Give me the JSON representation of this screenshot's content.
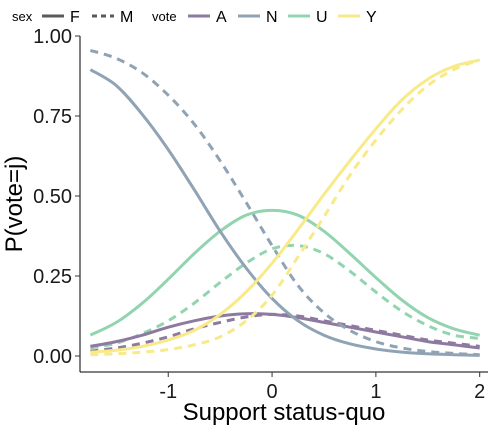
{
  "chart_data": {
    "type": "line",
    "xlabel": "Support status-quo",
    "ylabel": "P(vote=j)",
    "xlim": [
      -1.85,
      2.08
    ],
    "ylim": [
      -0.05,
      1.0
    ],
    "x_ticks": [
      -1,
      0,
      1,
      2
    ],
    "x_tick_labels": [
      "-1",
      "0",
      "1",
      "2"
    ],
    "y_ticks": [
      0.0,
      0.25,
      0.5,
      0.75,
      1.0
    ],
    "y_tick_labels": [
      "0.00",
      "0.25",
      "0.50",
      "0.75",
      "1.00"
    ],
    "grid": false,
    "legend_position": "top",
    "legend": {
      "sex_title": "sex",
      "sex_items": [
        {
          "label": "F",
          "linetype": "solid"
        },
        {
          "label": "M",
          "linetype": "dashed"
        }
      ],
      "vote_title": "vote",
      "vote_items": [
        {
          "label": "A",
          "color": "#8e79a0"
        },
        {
          "label": "N",
          "color": "#8fa3b4"
        },
        {
          "label": "U",
          "color": "#92d4b0"
        },
        {
          "label": "Y",
          "color": "#f8ea88"
        }
      ]
    },
    "x": [
      -1.75,
      -1.5,
      -1.25,
      -1.0,
      -0.75,
      -0.5,
      -0.25,
      0.0,
      0.25,
      0.5,
      0.75,
      1.0,
      1.25,
      1.5,
      1.75,
      2.0
    ],
    "series": [
      {
        "vote": "N",
        "sex": "F",
        "color": "#8fa3b4",
        "linetype": "solid",
        "values": [
          0.895,
          0.845,
          0.755,
          0.645,
          0.52,
          0.39,
          0.275,
          0.18,
          0.11,
          0.065,
          0.038,
          0.022,
          0.012,
          0.007,
          0.004,
          0.002
        ]
      },
      {
        "vote": "N",
        "sex": "M",
        "color": "#8fa3b4",
        "linetype": "dashed",
        "values": [
          0.955,
          0.93,
          0.885,
          0.815,
          0.725,
          0.61,
          0.48,
          0.345,
          0.22,
          0.135,
          0.08,
          0.045,
          0.025,
          0.014,
          0.008,
          0.004
        ]
      },
      {
        "vote": "U",
        "sex": "F",
        "color": "#92d4b0",
        "linetype": "solid",
        "values": [
          0.065,
          0.105,
          0.165,
          0.24,
          0.32,
          0.39,
          0.44,
          0.455,
          0.44,
          0.39,
          0.32,
          0.245,
          0.175,
          0.12,
          0.085,
          0.065
        ]
      },
      {
        "vote": "U",
        "sex": "M",
        "color": "#92d4b0",
        "linetype": "dashed",
        "values": [
          0.025,
          0.04,
          0.07,
          0.11,
          0.165,
          0.23,
          0.29,
          0.335,
          0.345,
          0.32,
          0.265,
          0.2,
          0.14,
          0.095,
          0.065,
          0.055
        ]
      },
      {
        "vote": "A",
        "sex": "F",
        "color": "#8e79a0",
        "linetype": "solid",
        "values": [
          0.03,
          0.045,
          0.065,
          0.09,
          0.11,
          0.125,
          0.132,
          0.13,
          0.12,
          0.105,
          0.09,
          0.075,
          0.06,
          0.045,
          0.035,
          0.025
        ]
      },
      {
        "vote": "A",
        "sex": "M",
        "color": "#8e79a0",
        "linetype": "dashed",
        "values": [
          0.015,
          0.025,
          0.04,
          0.06,
          0.085,
          0.105,
          0.122,
          0.13,
          0.125,
          0.11,
          0.095,
          0.08,
          0.065,
          0.05,
          0.04,
          0.03
        ]
      },
      {
        "vote": "Y",
        "sex": "F",
        "color": "#f8ea88",
        "linetype": "solid",
        "values": [
          0.012,
          0.018,
          0.03,
          0.05,
          0.08,
          0.13,
          0.2,
          0.29,
          0.395,
          0.505,
          0.61,
          0.71,
          0.8,
          0.865,
          0.905,
          0.925
        ]
      },
      {
        "vote": "Y",
        "sex": "M",
        "color": "#f8ea88",
        "linetype": "dashed",
        "values": [
          0.004,
          0.007,
          0.012,
          0.02,
          0.035,
          0.06,
          0.11,
          0.19,
          0.31,
          0.435,
          0.565,
          0.675,
          0.77,
          0.845,
          0.895,
          0.925
        ]
      }
    ]
  }
}
